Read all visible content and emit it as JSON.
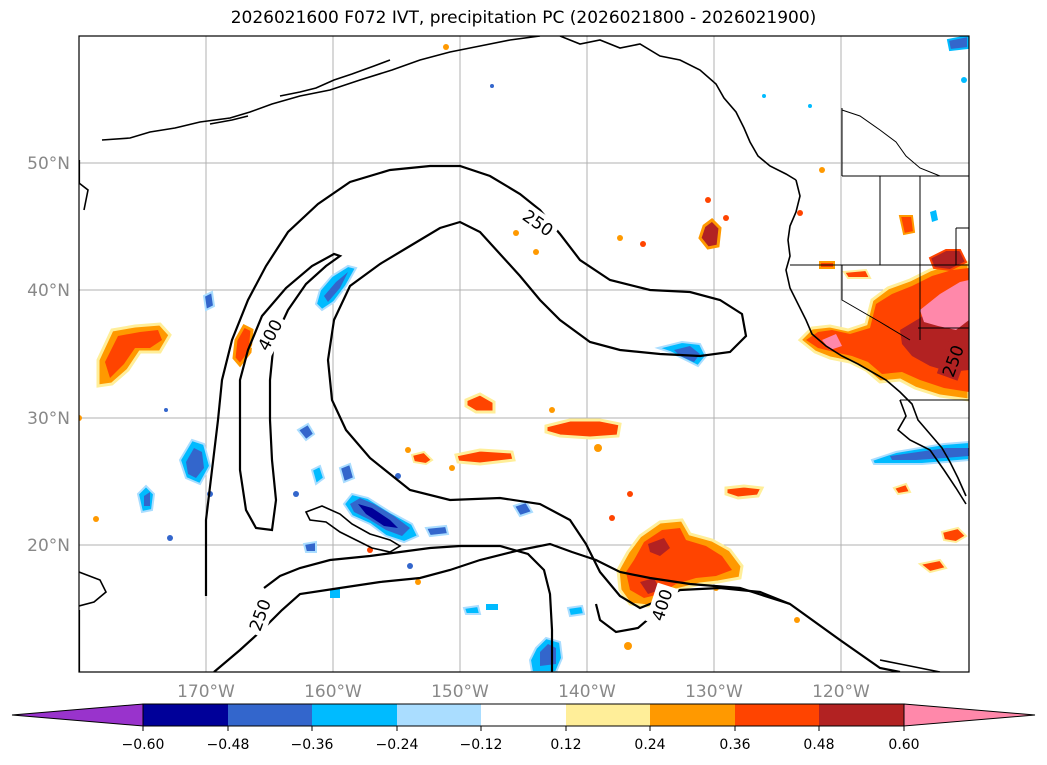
{
  "title": "2026021600 F072 IVT, precipitation PC (2026021800 - 2026021900)",
  "lat_ticks": [
    "50°N",
    "40°N",
    "30°N",
    "20°N"
  ],
  "lon_ticks": [
    "170°W",
    "160°W",
    "150°W",
    "140°W",
    "130°W",
    "120°W"
  ],
  "ivt_contour_labels": [
    "250",
    "400",
    "250",
    "400",
    "250"
  ],
  "colorbar": {
    "tick_labels": [
      "−0.60",
      "−0.48",
      "−0.36",
      "−0.24",
      "−0.12",
      "0.12",
      "0.24",
      "0.36",
      "0.48",
      "0.60"
    ],
    "colors": [
      "#9933cc",
      "#000099",
      "#3366cc",
      "#00bbff",
      "#aaddff",
      "#ffffff",
      "#ffee99",
      "#ff9900",
      "#ff4400",
      "#b22222",
      "#ff88aa"
    ]
  },
  "colors": {
    "pink": "#ff88aa",
    "darkred": "#b22222",
    "red": "#ff4400",
    "orange": "#ff9900",
    "yellow": "#ffee99",
    "lightblue": "#aaddff",
    "cyan": "#00bbff",
    "blue": "#3366cc",
    "navy": "#000099"
  }
}
